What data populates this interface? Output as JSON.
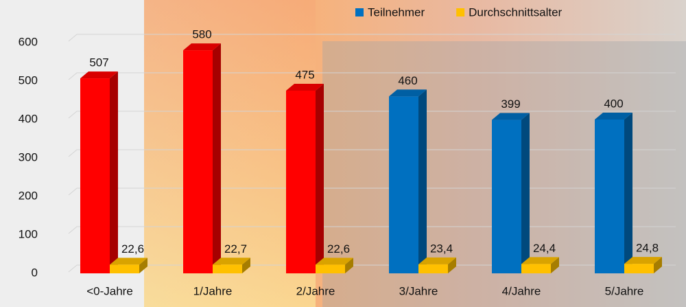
{
  "chart_data": {
    "type": "bar3d",
    "categories": [
      "<0-Jahre",
      "1/Jahre",
      "2/Jahre",
      "3/Jahre",
      "4/Jahre",
      "5/Jahre"
    ],
    "series": [
      {
        "name": "Teilnehmer",
        "color": "#0070c0",
        "colors": [
          "#ff0000",
          "#ff0000",
          "#ff0000",
          "#0070c0",
          "#0070c0",
          "#0070c0"
        ],
        "values": [
          507,
          580,
          475,
          460,
          399,
          400
        ]
      },
      {
        "name": "Durchschnittsalter",
        "color": "#ffc000",
        "values": [
          22.6,
          22.7,
          22.6,
          23.4,
          24.4,
          24.8
        ],
        "value_labels": [
          "22,6",
          "22,7",
          "22,6",
          "23,4",
          "24,4",
          "24,8"
        ]
      }
    ],
    "ylim": [
      0,
      600
    ],
    "yticks": [
      0,
      100,
      200,
      300,
      400,
      500,
      600
    ],
    "grid": true,
    "legend": "top-right"
  }
}
